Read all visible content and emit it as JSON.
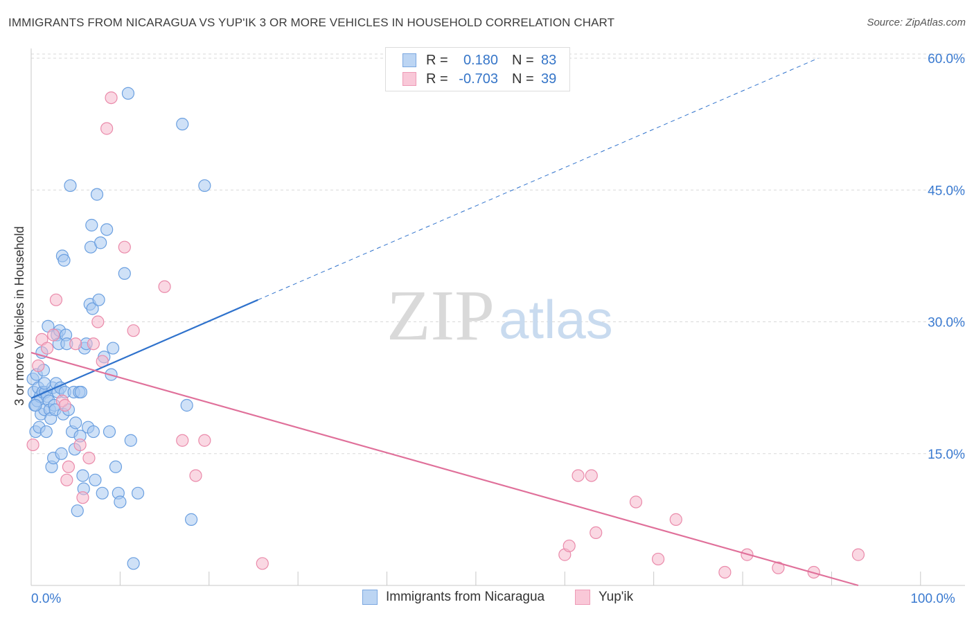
{
  "title": "IMMIGRANTS FROM NICARAGUA VS YUP'IK 3 OR MORE VEHICLES IN HOUSEHOLD CORRELATION CHART",
  "source": "Source: ZipAtlas.com",
  "watermark": {
    "zip": "ZIP",
    "atlas": "atlas"
  },
  "legend": {
    "r_label": "R =",
    "n_label": "N =",
    "series1": {
      "r": "0.180",
      "n": "83"
    },
    "series2": {
      "r": "-0.703",
      "n": "39"
    }
  },
  "bottom_legend": {
    "series1": "Immigrants from Nicaragua",
    "series2": "Yup'ik"
  },
  "colors": {
    "blue_fill": "#a8c8f0",
    "blue_stroke": "#6a9fe0",
    "blue_line": "#2f72cc",
    "pink_fill": "#f6b8cc",
    "pink_stroke": "#ea8aaa",
    "pink_line": "#e0709a",
    "axis_text": "#3a7ad0",
    "grid": "#d8d8d8"
  },
  "chart_data": {
    "type": "scatter",
    "title": "IMMIGRANTS FROM NICARAGUA VS YUP'IK 3 OR MORE VEHICLES IN HOUSEHOLD CORRELATION CHART",
    "xlabel": "",
    "ylabel": "3 or more Vehicles in Household",
    "xlim": [
      0,
      105
    ],
    "ylim": [
      0,
      61.5
    ],
    "x_tick_labels": [
      {
        "value": 0,
        "label": "0.0%"
      },
      {
        "value": 100,
        "label": "100.0%"
      }
    ],
    "y_tick_labels": [
      {
        "value": 15,
        "label": "15.0%"
      },
      {
        "value": 30,
        "label": "30.0%"
      },
      {
        "value": 45,
        "label": "45.0%"
      },
      {
        "value": 60,
        "label": "60.0%"
      }
    ],
    "series": [
      {
        "name": "Immigrants from Nicaragua",
        "color": "#a8c8f0",
        "points": [
          [
            0.2,
            23.5
          ],
          [
            0.3,
            22.0
          ],
          [
            0.4,
            20.5
          ],
          [
            0.5,
            17.5
          ],
          [
            0.6,
            24.0
          ],
          [
            0.7,
            21.0
          ],
          [
            0.8,
            22.5
          ],
          [
            0.9,
            18.0
          ],
          [
            1.0,
            21.5
          ],
          [
            1.1,
            19.5
          ],
          [
            1.2,
            26.5
          ],
          [
            1.3,
            22.0
          ],
          [
            1.4,
            24.5
          ],
          [
            1.5,
            20.0
          ],
          [
            1.6,
            22.0
          ],
          [
            1.7,
            17.5
          ],
          [
            1.8,
            21.5
          ],
          [
            1.9,
            29.5
          ],
          [
            2.0,
            21.0
          ],
          [
            2.1,
            20.0
          ],
          [
            2.2,
            19.0
          ],
          [
            2.3,
            13.5
          ],
          [
            2.4,
            22.5
          ],
          [
            2.5,
            14.5
          ],
          [
            2.6,
            20.5
          ],
          [
            2.7,
            20.0
          ],
          [
            2.8,
            23.0
          ],
          [
            2.9,
            28.5
          ],
          [
            3.0,
            22.0
          ],
          [
            3.1,
            27.5
          ],
          [
            3.2,
            29.0
          ],
          [
            3.3,
            22.5
          ],
          [
            3.4,
            15.0
          ],
          [
            3.5,
            37.5
          ],
          [
            3.6,
            19.5
          ],
          [
            3.7,
            37.0
          ],
          [
            3.8,
            22.0
          ],
          [
            3.9,
            28.5
          ],
          [
            4.0,
            27.5
          ],
          [
            4.2,
            20.0
          ],
          [
            4.4,
            45.5
          ],
          [
            4.6,
            17.5
          ],
          [
            4.8,
            22.0
          ],
          [
            4.9,
            15.5
          ],
          [
            5.0,
            18.5
          ],
          [
            5.2,
            8.5
          ],
          [
            5.4,
            22.0
          ],
          [
            5.5,
            17.0
          ],
          [
            5.6,
            22.0
          ],
          [
            5.8,
            12.5
          ],
          [
            5.9,
            11.0
          ],
          [
            6.0,
            27.0
          ],
          [
            6.2,
            27.5
          ],
          [
            6.4,
            18.0
          ],
          [
            6.6,
            32.0
          ],
          [
            6.7,
            38.5
          ],
          [
            6.8,
            41.0
          ],
          [
            6.9,
            31.5
          ],
          [
            7.0,
            17.5
          ],
          [
            7.2,
            12.0
          ],
          [
            7.4,
            44.5
          ],
          [
            7.6,
            32.5
          ],
          [
            7.8,
            39.0
          ],
          [
            8.0,
            10.5
          ],
          [
            8.2,
            26.0
          ],
          [
            8.5,
            40.5
          ],
          [
            8.8,
            17.5
          ],
          [
            9.0,
            24.0
          ],
          [
            9.2,
            27.0
          ],
          [
            9.5,
            13.5
          ],
          [
            9.8,
            10.5
          ],
          [
            10.0,
            9.5
          ],
          [
            10.5,
            35.5
          ],
          [
            10.9,
            56.0
          ],
          [
            11.2,
            16.5
          ],
          [
            11.5,
            2.5
          ],
          [
            12.0,
            10.5
          ],
          [
            17.0,
            52.5
          ],
          [
            17.5,
            20.5
          ],
          [
            18.0,
            7.5
          ],
          [
            19.5,
            45.5
          ],
          [
            0.5,
            20.5
          ],
          [
            1.5,
            23.0
          ]
        ]
      },
      {
        "name": "Yup'ik",
        "color": "#f6b8cc",
        "points": [
          [
            0.2,
            16.0
          ],
          [
            0.8,
            25.0
          ],
          [
            1.2,
            28.0
          ],
          [
            1.8,
            27.0
          ],
          [
            2.5,
            28.5
          ],
          [
            2.8,
            32.5
          ],
          [
            3.5,
            21.0
          ],
          [
            3.8,
            20.5
          ],
          [
            4.0,
            12.0
          ],
          [
            4.2,
            13.5
          ],
          [
            5.0,
            27.5
          ],
          [
            5.5,
            16.0
          ],
          [
            5.8,
            10.0
          ],
          [
            6.5,
            14.5
          ],
          [
            7.0,
            27.5
          ],
          [
            7.5,
            30.0
          ],
          [
            8.0,
            25.5
          ],
          [
            8.5,
            52.0
          ],
          [
            9.0,
            55.5
          ],
          [
            10.5,
            38.5
          ],
          [
            11.5,
            29.0
          ],
          [
            15.0,
            34.0
          ],
          [
            17.0,
            16.5
          ],
          [
            18.5,
            12.5
          ],
          [
            19.5,
            16.5
          ],
          [
            26.0,
            2.5
          ],
          [
            60.0,
            3.5
          ],
          [
            60.5,
            4.5
          ],
          [
            61.5,
            12.5
          ],
          [
            63.5,
            6.0
          ],
          [
            63.0,
            12.5
          ],
          [
            68.0,
            9.5
          ],
          [
            70.5,
            3.0
          ],
          [
            72.5,
            7.5
          ],
          [
            78.0,
            1.5
          ],
          [
            80.5,
            3.5
          ],
          [
            84.0,
            2.0
          ],
          [
            88.0,
            1.5
          ],
          [
            93.0,
            3.5
          ]
        ]
      }
    ],
    "trend_lines": [
      {
        "series": "Immigrants from Nicaragua",
        "style": "solid",
        "x": [
          0,
          25.5
        ],
        "y": [
          21.3,
          32.5
        ]
      },
      {
        "series": "Immigrants from Nicaragua",
        "style": "dashed",
        "x": [
          25.5,
          88.5
        ],
        "y": [
          32.5,
          60.0
        ]
      },
      {
        "series": "Yup'ik",
        "style": "solid",
        "x": [
          0,
          93.0
        ],
        "y": [
          26.5,
          0
        ]
      }
    ],
    "grid": true,
    "legend_position": "top-center"
  }
}
